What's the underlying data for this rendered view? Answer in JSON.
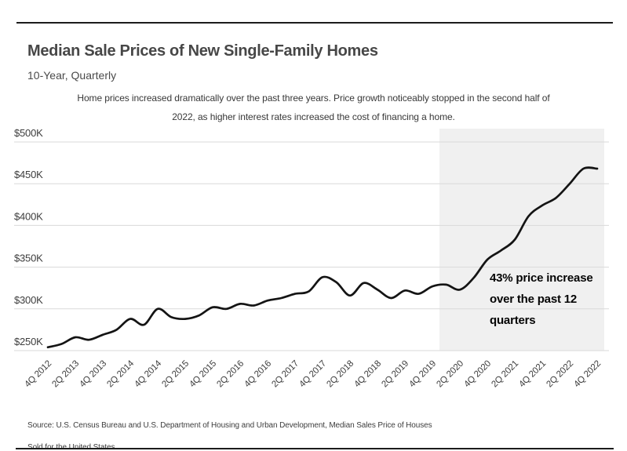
{
  "page": {
    "title": "Median Sale Prices of New Single-Family Homes",
    "subtitle": "10-Year, Quarterly",
    "description_line1": "Home prices increased dramatically over the past three years. Price growth noticeably stopped in the second half of",
    "description_line2": "2022, as higher interest rates increased the cost of financing a home.",
    "source_line1": "Source:  U.S. Census Bureau and U.S. Department of Housing and Urban Development, Median Sales Price of Houses",
    "source_line2": "Sold for the United States"
  },
  "annotation": {
    "text": "43% price increase over the past 12 quarters",
    "lines": [
      "43% price increase",
      "over the past 12",
      "quarters"
    ]
  },
  "colors": {
    "line": "#141414",
    "grid": "#d9d9d9",
    "highlight_bg": "#f0f0f0",
    "tick_text": "#3d3d3d",
    "title_text": "#474747",
    "rule": "#1c1c1c"
  },
  "chart_data": {
    "type": "line",
    "title": "Median Sale Prices of New Single-Family Homes",
    "subtitle": "10-Year, Quarterly",
    "xlabel": "",
    "ylabel": "",
    "units": "thousands of USD",
    "ylim": [
      250,
      500
    ],
    "grid": "horizontal",
    "legend": "none",
    "x_tick_every": 2,
    "y_ticks": [
      {
        "value": 500,
        "label": "$500K"
      },
      {
        "value": 450,
        "label": "$450K"
      },
      {
        "value": 400,
        "label": "$400K"
      },
      {
        "value": 350,
        "label": "$350K"
      },
      {
        "value": 300,
        "label": "$300K"
      },
      {
        "value": 250,
        "label": "$250K"
      }
    ],
    "x": [
      "4Q 2012",
      "1Q 2013",
      "2Q 2013",
      "3Q 2013",
      "4Q 2013",
      "1Q 2014",
      "2Q 2014",
      "3Q 2014",
      "4Q 2014",
      "1Q 2015",
      "2Q 2015",
      "3Q 2015",
      "4Q 2015",
      "1Q 2016",
      "2Q 2016",
      "3Q 2016",
      "4Q 2016",
      "1Q 2017",
      "2Q 2017",
      "3Q 2017",
      "4Q 2017",
      "1Q 2018",
      "2Q 2018",
      "3Q 2018",
      "4Q 2018",
      "1Q 2019",
      "2Q 2019",
      "3Q 2019",
      "4Q 2019",
      "1Q 2020",
      "2Q 2020",
      "3Q 2020",
      "4Q 2020",
      "1Q 2021",
      "2Q 2021",
      "3Q 2021",
      "4Q 2021",
      "1Q 2022",
      "2Q 2022",
      "3Q 2022",
      "4Q 2022"
    ],
    "series": [
      {
        "name": "Median sale price of new single-family homes ($K)",
        "values": [
          254,
          258,
          266,
          263,
          269,
          275,
          288,
          281,
          300,
          290,
          288,
          292,
          302,
          300,
          306,
          304,
          310,
          313,
          318,
          321,
          338,
          332,
          316,
          331,
          323,
          313,
          322,
          318,
          327,
          329,
          323,
          337,
          359,
          370,
          383,
          411,
          424,
          433,
          450,
          468,
          468
        ]
      }
    ],
    "highlight_region": {
      "from": "4Q 2019",
      "to": "4Q 2022",
      "label": "43% price increase over the past 12 quarters"
    }
  }
}
